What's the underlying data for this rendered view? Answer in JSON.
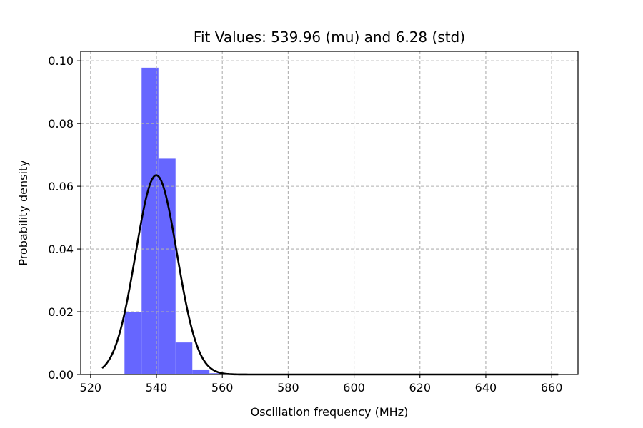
{
  "chart_data": {
    "type": "bar",
    "title": "Fit Values: 539.96 (mu) and 6.28 (std)",
    "xlabel": "Oscillation frequency (MHz)",
    "ylabel": "Probability density",
    "xlim": [
      517,
      668
    ],
    "ylim": [
      0,
      0.103
    ],
    "x_ticks": [
      520,
      540,
      560,
      580,
      600,
      620,
      640,
      660
    ],
    "y_ticks": [
      0.0,
      0.02,
      0.04,
      0.06,
      0.08,
      0.1
    ],
    "y_tick_labels": [
      "0.00",
      "0.02",
      "0.04",
      "0.06",
      "0.08",
      "0.10"
    ],
    "grid": true,
    "histogram": {
      "color": "#6666ff",
      "bins": [
        {
          "x0": 530.3,
          "x1": 535.5,
          "density": 0.02
        },
        {
          "x0": 535.5,
          "x1": 540.6,
          "density": 0.0978
        },
        {
          "x0": 540.6,
          "x1": 545.8,
          "density": 0.0688
        },
        {
          "x0": 545.8,
          "x1": 550.9,
          "density": 0.0102
        },
        {
          "x0": 550.9,
          "x1": 556.1,
          "density": 0.0016
        },
        {
          "x0": 556.1,
          "x1": 561.2,
          "density": 0.0004
        }
      ]
    },
    "fit": {
      "type": "normal",
      "mu": 539.96,
      "std": 6.28,
      "x_range": [
        523.5,
        662.0
      ],
      "color": "#000000"
    }
  }
}
